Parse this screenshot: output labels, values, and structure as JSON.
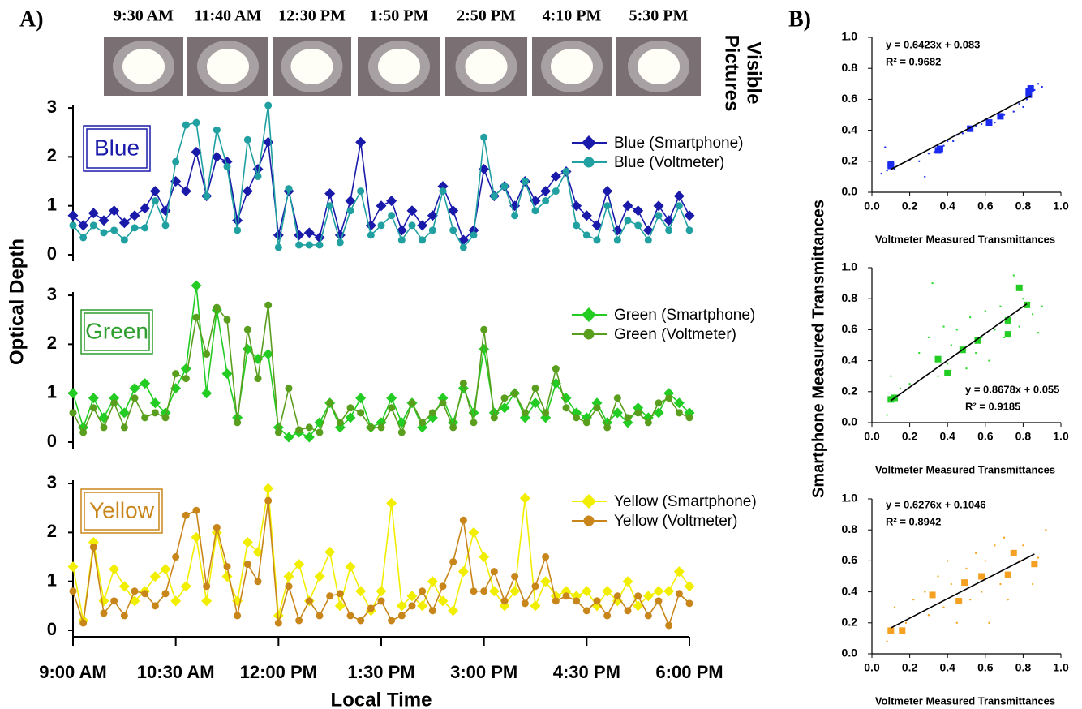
{
  "figure": {
    "panel_a": "A)",
    "panel_b": "B)",
    "picture_times": [
      "9:30 AM",
      "11:40 AM",
      "12:30 PM",
      "1:50 PM",
      "2:50 PM",
      "4:10 PM",
      "5:30 PM"
    ],
    "pictures_label": [
      "Visible",
      "Pictures"
    ]
  },
  "chart_data": [
    {
      "type": "line",
      "label": "Blue",
      "label_color": "#1a1aaa",
      "xlim": [
        9,
        18
      ],
      "ylim": [
        0,
        3.2
      ],
      "yticks": [
        0,
        1,
        2,
        3
      ],
      "legend": "right",
      "x": [
        9,
        9.15,
        9.3,
        9.45,
        9.6,
        9.75,
        9.9,
        10.05,
        10.2,
        10.35,
        10.5,
        10.65,
        10.8,
        10.95,
        11.1,
        11.25,
        11.4,
        11.55,
        11.7,
        11.85,
        12,
        12.15,
        12.3,
        12.45,
        12.6,
        12.75,
        12.9,
        13.05,
        13.2,
        13.35,
        13.5,
        13.65,
        13.8,
        13.95,
        14.1,
        14.25,
        14.4,
        14.55,
        14.7,
        14.85,
        15,
        15.15,
        15.3,
        15.45,
        15.6,
        15.75,
        15.9,
        16.05,
        16.2,
        16.35,
        16.5,
        16.65,
        16.8,
        16.95,
        17.1,
        17.25,
        17.4,
        17.55,
        17.7,
        17.85,
        18
      ],
      "series": [
        {
          "name": "Blue (Smartphone)",
          "color": "#1a1aaa",
          "marker": "diamond",
          "values": [
            0.8,
            0.6,
            0.85,
            0.7,
            0.9,
            0.65,
            0.8,
            0.95,
            1.3,
            0.9,
            1.5,
            1.3,
            2.1,
            1.2,
            2.0,
            1.9,
            0.7,
            1.3,
            1.75,
            2.3,
            0.4,
            1.3,
            0.4,
            0.45,
            0.35,
            1.25,
            0.4,
            1.1,
            2.3,
            0.6,
            1.0,
            1.1,
            0.5,
            0.9,
            0.6,
            0.8,
            1.4,
            0.9,
            0.3,
            0.5,
            1.75,
            1.2,
            1.4,
            1.0,
            1.5,
            1.1,
            1.3,
            1.6,
            1.7,
            1.0,
            0.8,
            0.6,
            1.3,
            0.5,
            1.0,
            0.9,
            0.5,
            1.0,
            0.7,
            1.2,
            0.8
          ]
        },
        {
          "name": "Blue (Voltmeter)",
          "color": "#20a0a0",
          "marker": "circle",
          "values": [
            0.6,
            0.35,
            0.6,
            0.45,
            0.5,
            0.3,
            0.55,
            0.55,
            1.1,
            0.6,
            1.9,
            2.65,
            2.7,
            1.2,
            2.55,
            1.8,
            0.5,
            2.35,
            1.6,
            3.05,
            0.15,
            1.35,
            0.2,
            0.2,
            0.2,
            1.0,
            0.25,
            0.9,
            1.3,
            0.4,
            0.6,
            0.8,
            0.3,
            0.6,
            0.3,
            0.5,
            1.3,
            0.5,
            0.15,
            0.4,
            2.4,
            1.2,
            1.4,
            0.8,
            1.5,
            0.9,
            1.1,
            1.3,
            1.7,
            0.6,
            0.4,
            0.3,
            1.0,
            0.3,
            0.7,
            0.6,
            0.3,
            0.8,
            0.5,
            1.0,
            0.5
          ]
        }
      ]
    },
    {
      "type": "line",
      "label": "Green",
      "label_color": "#2e9e2e",
      "xlim": [
        9,
        18
      ],
      "ylim": [
        0,
        3.2
      ],
      "yticks": [
        0,
        1,
        2,
        3
      ],
      "legend": "right",
      "ylabel": "Optical Depth",
      "x": [
        9,
        9.15,
        9.3,
        9.45,
        9.6,
        9.75,
        9.9,
        10.05,
        10.2,
        10.35,
        10.5,
        10.65,
        10.8,
        10.95,
        11.1,
        11.25,
        11.4,
        11.55,
        11.7,
        11.85,
        12,
        12.15,
        12.3,
        12.45,
        12.6,
        12.75,
        12.9,
        13.05,
        13.2,
        13.35,
        13.5,
        13.65,
        13.8,
        13.95,
        14.1,
        14.25,
        14.4,
        14.55,
        14.7,
        14.85,
        15,
        15.15,
        15.3,
        15.45,
        15.6,
        15.75,
        15.9,
        16.05,
        16.2,
        16.35,
        16.5,
        16.65,
        16.8,
        16.95,
        17.1,
        17.25,
        17.4,
        17.55,
        17.7,
        17.85,
        18
      ],
      "series": [
        {
          "name": "Green (Smartphone)",
          "color": "#22cc22",
          "marker": "diamond",
          "values": [
            1.0,
            0.3,
            0.9,
            0.5,
            0.9,
            0.6,
            1.1,
            1.2,
            0.8,
            0.6,
            1.1,
            1.5,
            3.2,
            1.0,
            2.7,
            1.4,
            0.5,
            1.9,
            1.7,
            1.8,
            0.3,
            0.1,
            0.2,
            0.1,
            0.4,
            0.8,
            0.3,
            0.5,
            0.9,
            0.3,
            0.4,
            0.9,
            0.4,
            0.8,
            0.3,
            0.5,
            0.9,
            0.4,
            1.1,
            0.6,
            1.9,
            0.6,
            0.7,
            1.0,
            0.5,
            0.8,
            0.5,
            1.2,
            0.9,
            0.6,
            0.5,
            0.8,
            0.4,
            0.6,
            0.4,
            0.7,
            0.5,
            0.6,
            1.0,
            0.8,
            0.6
          ]
        },
        {
          "name": "Green (Voltmeter)",
          "color": "#5a9e1e",
          "marker": "circle",
          "values": [
            0.6,
            0.2,
            0.7,
            0.3,
            0.8,
            0.3,
            0.9,
            0.5,
            0.6,
            0.5,
            1.4,
            1.3,
            2.55,
            1.8,
            2.75,
            2.5,
            0.4,
            2.3,
            1.3,
            2.8,
            0.2,
            1.1,
            0.25,
            0.3,
            0.2,
            0.8,
            0.4,
            0.7,
            0.6,
            0.3,
            0.3,
            0.7,
            0.2,
            0.8,
            0.4,
            0.6,
            0.8,
            0.3,
            1.2,
            0.4,
            2.3,
            0.5,
            0.9,
            1.0,
            0.6,
            1.1,
            0.6,
            1.5,
            0.7,
            0.5,
            0.4,
            0.7,
            0.3,
            0.9,
            0.5,
            0.6,
            0.4,
            0.8,
            0.9,
            0.6,
            0.5
          ]
        }
      ]
    },
    {
      "type": "line",
      "label": "Yellow",
      "label_color": "#c8861a",
      "xlim": [
        9,
        18
      ],
      "ylim": [
        0,
        3.2
      ],
      "yticks": [
        0,
        1,
        2,
        3
      ],
      "legend": "right",
      "xlabel": "Local Time",
      "xticks": [
        {
          "value": 9,
          "label": "9:00 AM"
        },
        {
          "value": 10.5,
          "label": "10:30 AM"
        },
        {
          "value": 12,
          "label": "12:00 PM"
        },
        {
          "value": 13.5,
          "label": "1:30 PM"
        },
        {
          "value": 15,
          "label": "3:00 PM"
        },
        {
          "value": 16.5,
          "label": "4:30 PM"
        },
        {
          "value": 18,
          "label": "6:00 PM"
        }
      ],
      "x": [
        9,
        9.15,
        9.3,
        9.45,
        9.6,
        9.75,
        9.9,
        10.05,
        10.2,
        10.35,
        10.5,
        10.65,
        10.8,
        10.95,
        11.1,
        11.25,
        11.4,
        11.55,
        11.7,
        11.85,
        12,
        12.15,
        12.3,
        12.45,
        12.6,
        12.75,
        12.9,
        13.05,
        13.2,
        13.35,
        13.5,
        13.65,
        13.8,
        13.95,
        14.1,
        14.25,
        14.4,
        14.55,
        14.7,
        14.85,
        15,
        15.15,
        15.3,
        15.45,
        15.6,
        15.75,
        15.9,
        16.05,
        16.2,
        16.35,
        16.5,
        16.65,
        16.8,
        16.95,
        17.1,
        17.25,
        17.4,
        17.55,
        17.7,
        17.85,
        18
      ],
      "series": [
        {
          "name": "Yellow (Smartphone)",
          "color": "#f2ee00",
          "marker": "diamond",
          "values": [
            1.3,
            0.2,
            1.8,
            0.6,
            1.25,
            0.9,
            0.6,
            0.8,
            1.1,
            1.25,
            0.6,
            0.9,
            1.9,
            0.6,
            2.0,
            1.1,
            0.6,
            1.8,
            1.6,
            2.9,
            0.3,
            1.1,
            1.35,
            0.6,
            1.1,
            1.6,
            0.5,
            1.3,
            0.8,
            0.4,
            0.8,
            2.6,
            0.5,
            0.7,
            0.5,
            1.0,
            0.6,
            0.4,
            1.2,
            2.0,
            1.5,
            0.8,
            0.5,
            0.8,
            2.7,
            0.5,
            1.0,
            0.7,
            0.8,
            0.7,
            0.8,
            0.5,
            0.8,
            0.6,
            1.0,
            0.5,
            0.7,
            0.8,
            0.8,
            1.2,
            0.9
          ]
        },
        {
          "name": "Yellow (Voltmeter)",
          "color": "#c8861a",
          "marker": "circle",
          "values": [
            0.8,
            0.15,
            1.7,
            0.35,
            0.6,
            0.3,
            0.8,
            0.75,
            0.5,
            0.75,
            1.5,
            2.35,
            2.45,
            0.9,
            2.1,
            1.3,
            0.3,
            1.35,
            1.0,
            2.65,
            0.15,
            0.9,
            0.2,
            0.6,
            0.3,
            0.7,
            0.75,
            0.3,
            0.2,
            0.45,
            0.6,
            0.2,
            0.3,
            0.5,
            0.8,
            0.4,
            0.9,
            1.4,
            2.25,
            0.8,
            0.8,
            1.2,
            0.6,
            1.1,
            0.55,
            0.9,
            1.5,
            0.6,
            0.7,
            0.6,
            0.4,
            0.6,
            0.3,
            0.7,
            0.4,
            0.7,
            0.3,
            0.6,
            0.1,
            0.75,
            0.55
          ]
        }
      ]
    },
    {
      "type": "scatter",
      "xlabel": "Voltmeter Measured Transmittances",
      "annotations": [
        "y = 0.6423x + 0.083",
        "R² = 0.9682"
      ],
      "fit": {
        "slope": 0.6423,
        "intercept": 0.083
      },
      "xlim": [
        0,
        1
      ],
      "ylim": [
        0,
        1
      ],
      "xticks": [
        {
          "value": 0,
          "label": "0.0"
        },
        0.2,
        0.4,
        0.6,
        0.8,
        {
          "value": 1,
          "label": "1.0"
        }
      ],
      "yticks": [
        {
          "value": 0,
          "label": "0.0"
        },
        0.2,
        0.4,
        0.6,
        0.8,
        {
          "value": 1,
          "label": "1.0"
        }
      ],
      "series": [
        {
          "marker": "dot",
          "color": "#2233ee",
          "x": [
            0.05,
            0.08,
            0.07,
            0.12,
            0.15,
            0.2,
            0.25,
            0.28,
            0.3,
            0.33,
            0.38,
            0.4,
            0.43,
            0.45,
            0.48,
            0.5,
            0.55,
            0.58,
            0.6,
            0.65,
            0.7,
            0.75,
            0.78,
            0.82,
            0.86,
            0.88,
            0.9,
            0.8
          ],
          "values": [
            0.12,
            0.14,
            0.29,
            0.15,
            0.18,
            0.21,
            0.2,
            0.1,
            0.25,
            0.26,
            0.3,
            0.33,
            0.33,
            0.37,
            0.38,
            0.4,
            0.43,
            0.44,
            0.47,
            0.45,
            0.5,
            0.52,
            0.57,
            0.6,
            0.66,
            0.7,
            0.68,
            0.55
          ]
        },
        {
          "marker": "square",
          "color": "#1a2aee",
          "x": [
            0.1,
            0.1,
            0.35,
            0.36,
            0.52,
            0.62,
            0.68,
            0.83,
            0.84,
            0.83
          ],
          "values": [
            0.17,
            0.18,
            0.27,
            0.28,
            0.41,
            0.45,
            0.49,
            0.63,
            0.67,
            0.65
          ]
        }
      ]
    },
    {
      "type": "scatter",
      "xlabel": "Voltmeter Measured Transmittances",
      "ylabel": "Smartphone Measured Transmittances",
      "annotations": [
        "y = 0.8678x + 0.055",
        "R² = 0.9185"
      ],
      "fit": {
        "slope": 0.8678,
        "intercept": 0.055
      },
      "xlim": [
        0,
        1
      ],
      "ylim": [
        0,
        1
      ],
      "xticks": [
        {
          "value": 0,
          "label": "0.0"
        },
        0.2,
        0.4,
        0.6,
        0.8,
        {
          "value": 1,
          "label": "1.0"
        }
      ],
      "yticks": [
        {
          "value": 0,
          "label": "0.0"
        },
        0.2,
        0.4,
        0.6,
        0.8,
        {
          "value": 1,
          "label": "1.0"
        }
      ],
      "series": [
        {
          "marker": "dot",
          "color": "#33dd33",
          "x": [
            0.08,
            0.1,
            0.15,
            0.2,
            0.25,
            0.3,
            0.32,
            0.35,
            0.38,
            0.4,
            0.42,
            0.45,
            0.5,
            0.52,
            0.55,
            0.58,
            0.6,
            0.62,
            0.65,
            0.68,
            0.7,
            0.75,
            0.78,
            0.8,
            0.85,
            0.88,
            0.9
          ],
          "values": [
            0.05,
            0.3,
            0.22,
            0.25,
            0.45,
            0.55,
            0.9,
            0.3,
            0.62,
            0.38,
            0.5,
            0.6,
            0.35,
            0.68,
            0.45,
            0.55,
            0.72,
            0.4,
            0.6,
            0.75,
            0.55,
            0.95,
            0.62,
            0.8,
            0.7,
            0.58,
            0.75
          ]
        },
        {
          "marker": "square",
          "color": "#22cc22",
          "x": [
            0.1,
            0.12,
            0.35,
            0.4,
            0.48,
            0.56,
            0.72,
            0.72,
            0.78,
            0.82
          ],
          "values": [
            0.15,
            0.16,
            0.41,
            0.32,
            0.47,
            0.53,
            0.66,
            0.57,
            0.87,
            0.76
          ]
        }
      ]
    },
    {
      "type": "scatter",
      "xlabel": "Voltmeter Measured Transmittances",
      "annotations": [
        "y = 0.6276x + 0.1046",
        "R² = 0.8942"
      ],
      "fit": {
        "slope": 0.6276,
        "intercept": 0.1046
      },
      "xlim": [
        0,
        1
      ],
      "ylim": [
        0,
        1
      ],
      "xticks": [
        {
          "value": 0,
          "label": "0.0"
        },
        0.2,
        0.4,
        0.6,
        0.8,
        {
          "value": 1,
          "label": "1.0"
        }
      ],
      "yticks": [
        {
          "value": 0,
          "label": "0.0"
        },
        0.2,
        0.4,
        0.6,
        0.8,
        {
          "value": 1,
          "label": "1.0"
        }
      ],
      "series": [
        {
          "marker": "dot",
          "color": "#f5a623",
          "x": [
            0.08,
            0.12,
            0.18,
            0.22,
            0.28,
            0.3,
            0.35,
            0.38,
            0.4,
            0.42,
            0.45,
            0.5,
            0.52,
            0.55,
            0.58,
            0.6,
            0.62,
            0.65,
            0.68,
            0.7,
            0.72,
            0.78,
            0.8,
            0.85,
            0.88,
            0.92
          ],
          "values": [
            0.08,
            0.3,
            0.2,
            0.35,
            0.4,
            0.25,
            0.5,
            0.3,
            0.6,
            0.45,
            0.2,
            0.55,
            0.35,
            0.65,
            0.4,
            0.6,
            0.2,
            0.7,
            0.45,
            0.75,
            0.35,
            0.6,
            0.7,
            0.45,
            0.62,
            0.8
          ]
        },
        {
          "marker": "square",
          "color": "#f5a020",
          "x": [
            0.1,
            0.16,
            0.32,
            0.46,
            0.49,
            0.58,
            0.72,
            0.75,
            0.86
          ],
          "values": [
            0.15,
            0.15,
            0.38,
            0.34,
            0.46,
            0.5,
            0.51,
            0.65,
            0.58
          ]
        }
      ]
    }
  ]
}
